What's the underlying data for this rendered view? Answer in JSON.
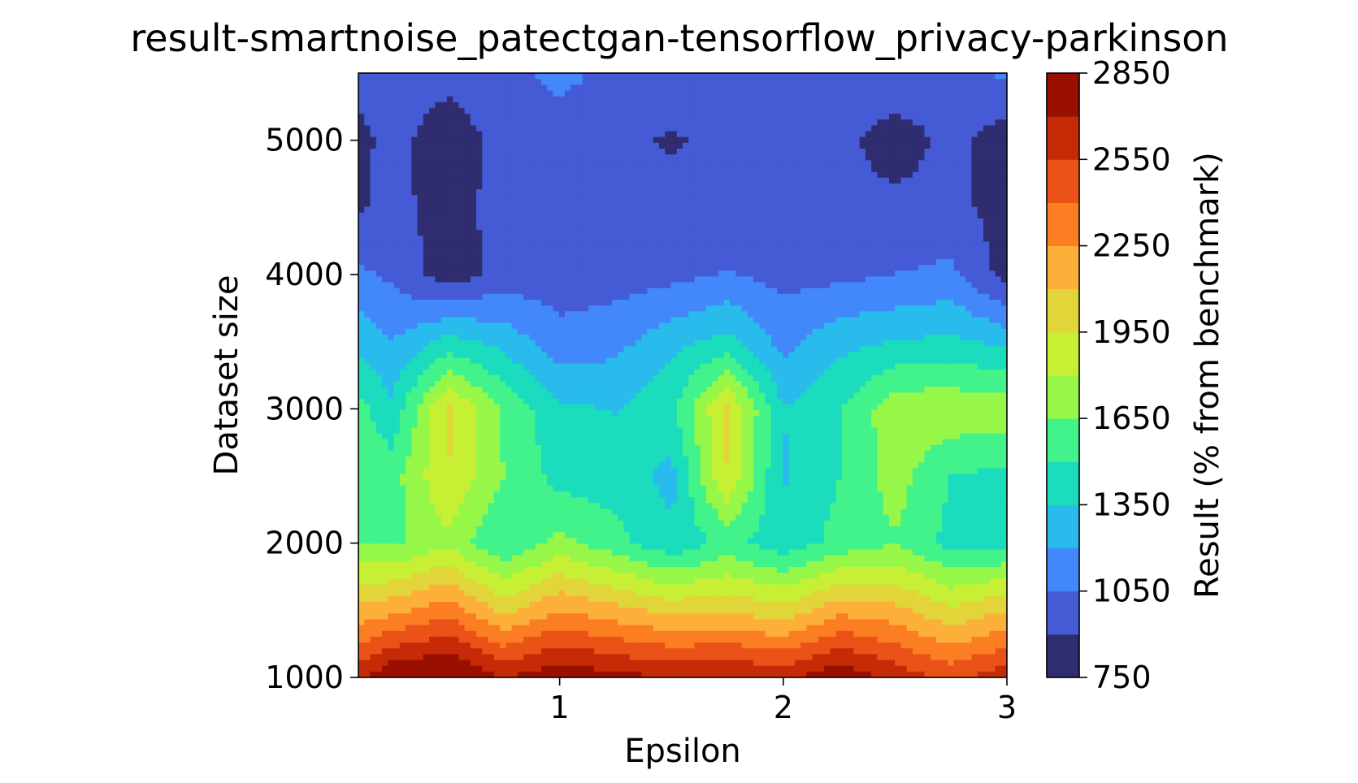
{
  "chart_data": {
    "type": "heatmap",
    "title": "result-smartnoise_patectgan-tensorflow_privacy-parkinson",
    "xlabel": "Epsilon",
    "ylabel": "Dataset size",
    "colorbar_label": "Result (% from benchmark)",
    "xlim": [
      0.1,
      3.0
    ],
    "ylim": [
      1000,
      5500
    ],
    "x_ticks": [
      "1",
      "2",
      "3"
    ],
    "x_tick_values": [
      1,
      2,
      3
    ],
    "y_ticks": [
      "1000",
      "2000",
      "3000",
      "4000",
      "5000"
    ],
    "y_tick_values": [
      1000,
      2000,
      3000,
      4000,
      5000
    ],
    "colorbar_ticks": [
      "750",
      "1050",
      "1350",
      "1650",
      "1950",
      "2250",
      "2550",
      "2850"
    ],
    "colorbar_tick_values": [
      750,
      1050,
      1350,
      1650,
      1950,
      2250,
      2550,
      2850
    ],
    "levels": [
      750,
      900,
      1050,
      1200,
      1350,
      1500,
      1650,
      1800,
      1950,
      2100,
      2250,
      2400,
      2550,
      2700,
      2850
    ],
    "level_colors": [
      "#30123b",
      "#455bcd",
      "#3e9cfe",
      "#18d7cb",
      "#48f882",
      "#a4fc3c",
      "#e2dc38",
      "#fea331",
      "#ef5911",
      "#c22402",
      "#7a0403"
    ],
    "band_colors": [
      "#2f2c6f",
      "#455bd5",
      "#4288fb",
      "#28bbec",
      "#1bdcbd",
      "#42f28b",
      "#96f748",
      "#c7ef34",
      "#e2d53a",
      "#fcb03a",
      "#fb7e22",
      "#eb5218",
      "#c62b07",
      "#991000"
    ],
    "x": [
      0.1,
      0.25,
      0.5,
      0.75,
      1.0,
      1.25,
      1.5,
      1.75,
      2.0,
      2.25,
      2.5,
      2.75,
      3.0
    ],
    "y": [
      1000,
      1500,
      2000,
      2500,
      3000,
      3500,
      4000,
      4500,
      5000,
      5500
    ],
    "z": [
      [
        2650,
        2850,
        2900,
        2700,
        2820,
        2750,
        2700,
        2720,
        2650,
        2830,
        2650,
        2500,
        2650
      ],
      [
        2150,
        2200,
        2350,
        2050,
        2250,
        2150,
        2050,
        2080,
        2000,
        2200,
        2150,
        1980,
        2100
      ],
      [
        1650,
        1620,
        1760,
        1500,
        1700,
        1550,
        1380,
        1550,
        1400,
        1550,
        1640,
        1450,
        1450
      ],
      [
        1600,
        1580,
        1950,
        1650,
        1440,
        1430,
        1300,
        1950,
        1330,
        1500,
        1720,
        1500,
        1460
      ],
      [
        1560,
        1380,
        1990,
        1620,
        1380,
        1340,
        1460,
        1980,
        1350,
        1480,
        1760,
        1760,
        1750
      ],
      [
        1300,
        1200,
        1400,
        1300,
        1100,
        1150,
        1300,
        1400,
        1150,
        1300,
        1350,
        1390,
        1300
      ],
      [
        1080,
        1020,
        810,
        960,
        970,
        980,
        1000,
        1060,
        1000,
        1010,
        1050,
        1080,
        840
      ],
      [
        880,
        950,
        830,
        960,
        960,
        950,
        950,
        950,
        960,
        960,
        950,
        950,
        830
      ],
      [
        850,
        960,
        790,
        970,
        960,
        950,
        880,
        950,
        960,
        960,
        800,
        960,
        810
      ],
      [
        960,
        1000,
        960,
        1000,
        1100,
        1000,
        1050,
        1000,
        960,
        960,
        1060,
        960,
        1080
      ]
    ]
  }
}
